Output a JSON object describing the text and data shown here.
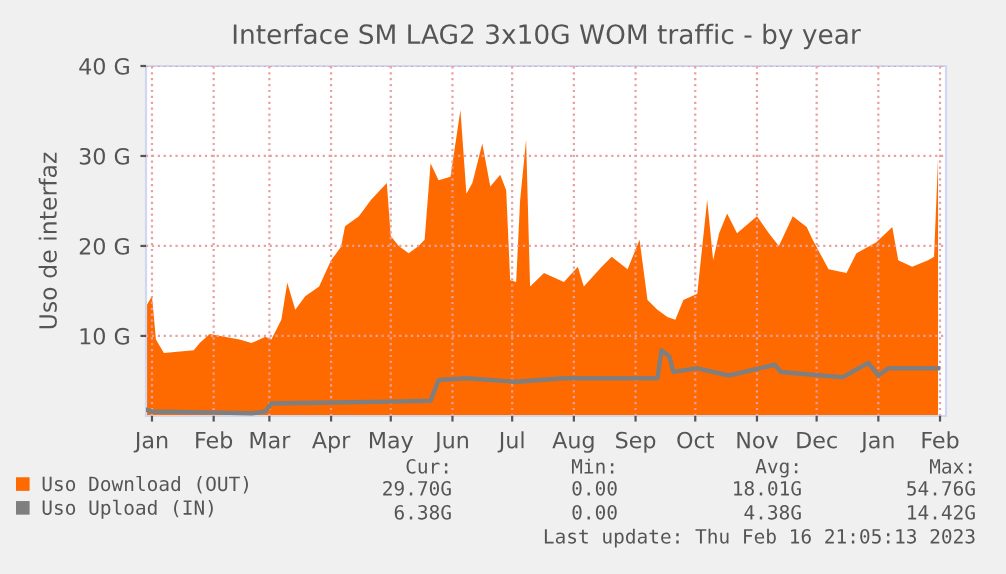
{
  "chart_data": {
    "type": "area",
    "title": "Interface SM LAG2 3x10G WOM traffic - by year",
    "ylabel": "Uso de interfaz",
    "ylim": [
      1.1,
      40
    ],
    "yticks": [
      {
        "value": 10,
        "label": "10 G"
      },
      {
        "value": 20,
        "label": "20 G"
      },
      {
        "value": 30,
        "label": "30 G"
      },
      {
        "value": 40,
        "label": "40 G"
      }
    ],
    "xlim": [
      "2022-01-12",
      "2023-02-18"
    ],
    "xticks": [
      {
        "value": "2022-01-15",
        "label": "Jan"
      },
      {
        "value": "2022-02-15",
        "label": "Feb"
      },
      {
        "value": "2022-03-15",
        "label": "Mar"
      },
      {
        "value": "2022-04-15",
        "label": "Apr"
      },
      {
        "value": "2022-05-15",
        "label": "May"
      },
      {
        "value": "2022-06-15",
        "label": "Jun"
      },
      {
        "value": "2022-07-15",
        "label": "Jul"
      },
      {
        "value": "2022-08-15",
        "label": "Aug"
      },
      {
        "value": "2022-09-15",
        "label": "Sep"
      },
      {
        "value": "2022-10-15",
        "label": "Oct"
      },
      {
        "value": "2022-11-15",
        "label": "Nov"
      },
      {
        "value": "2022-12-15",
        "label": "Dec"
      },
      {
        "value": "2023-01-15",
        "label": "Jan"
      },
      {
        "value": "2023-02-15",
        "label": "Feb"
      }
    ],
    "grid": true,
    "legend": "bottom",
    "series": [
      {
        "name": "Uso Download (OUT)",
        "color": "#ff6a00",
        "x": [
          "2022-01-12",
          "2022-01-15",
          "2022-01-17",
          "2022-01-21",
          "2022-02-05",
          "2022-02-08",
          "2022-02-13",
          "2022-02-28",
          "2022-03-06",
          "2022-03-13",
          "2022-03-16",
          "2022-03-21",
          "2022-03-24",
          "2022-03-28",
          "2022-04-02",
          "2022-04-09",
          "2022-04-15",
          "2022-04-20",
          "2022-04-22",
          "2022-04-29",
          "2022-05-05",
          "2022-05-13",
          "2022-05-15",
          "2022-05-19",
          "2022-05-24",
          "2022-05-29",
          "2022-06-01",
          "2022-06-04",
          "2022-06-08",
          "2022-06-14",
          "2022-06-19",
          "2022-06-22",
          "2022-06-25",
          "2022-06-30",
          "2022-07-04",
          "2022-07-09",
          "2022-07-12",
          "2022-07-14",
          "2022-07-17",
          "2022-07-19",
          "2022-07-22",
          "2022-07-24",
          "2022-07-31",
          "2022-08-10",
          "2022-08-17",
          "2022-08-20",
          "2022-08-29",
          "2022-09-03",
          "2022-09-11",
          "2022-09-17",
          "2022-09-21",
          "2022-09-26",
          "2022-10-01",
          "2022-10-05",
          "2022-10-09",
          "2022-10-16",
          "2022-10-21",
          "2022-10-24",
          "2022-10-27",
          "2022-10-31",
          "2022-11-05",
          "2022-11-15",
          "2022-11-21",
          "2022-11-26",
          "2022-12-03",
          "2022-12-10",
          "2022-12-13",
          "2022-12-21",
          "2022-12-30",
          "2023-01-04",
          "2023-01-14",
          "2023-01-22",
          "2023-01-25",
          "2023-02-01",
          "2023-02-09",
          "2023-02-12",
          "2023-02-14"
        ],
        "values": [
          13.3,
          14.4,
          9.6,
          8.1,
          8.4,
          9.2,
          10.2,
          9.6,
          9.2,
          9.9,
          9.6,
          11.8,
          15.9,
          12.9,
          14.4,
          15.5,
          18.4,
          19.9,
          22.2,
          23.3,
          25.1,
          27,
          21.1,
          20,
          19.2,
          20,
          20.7,
          29.2,
          27.3,
          27.7,
          35.1,
          25.8,
          27,
          31.4,
          26.6,
          27.9,
          26.2,
          16.2,
          16,
          25.1,
          31.8,
          15.5,
          17,
          16,
          17.7,
          15.5,
          17.7,
          18.8,
          17.4,
          20.7,
          14,
          12.9,
          12.1,
          11.8,
          14,
          14.7,
          25.1,
          18.4,
          21.4,
          23.6,
          21.4,
          23.3,
          21.4,
          20,
          23.3,
          22.1,
          20.7,
          17.4,
          17,
          19.2,
          20.4,
          22.1,
          18.4,
          17.7,
          18.4,
          18.8,
          29.7
        ]
      },
      {
        "name": "Uso Upload (IN)",
        "type": "line",
        "color": "#7f7f7f",
        "x": [
          "2022-01-12",
          "2022-01-15",
          "2022-02-13",
          "2022-03-06",
          "2022-03-13",
          "2022-03-16",
          "2022-04-15",
          "2022-05-15",
          "2022-06-04",
          "2022-06-08",
          "2022-06-22",
          "2022-07-17",
          "2022-08-10",
          "2022-09-26",
          "2022-09-28",
          "2022-10-02",
          "2022-10-04",
          "2022-10-16",
          "2022-11-01",
          "2022-11-24",
          "2022-11-27",
          "2022-12-28",
          "2023-01-10",
          "2023-01-15",
          "2023-01-20",
          "2023-02-14"
        ],
        "values": [
          1.8,
          1.6,
          1.5,
          1.4,
          1.6,
          2.5,
          2.6,
          2.7,
          2.8,
          5.1,
          5.3,
          4.9,
          5.3,
          5.3,
          8.4,
          7.7,
          6.0,
          6.4,
          5.6,
          6.8,
          6.0,
          5.4,
          7.0,
          5.6,
          6.4,
          6.4
        ]
      }
    ],
    "annotations": [
      "Cur:",
      "Min:",
      "Avg:",
      "Max:",
      "29.70G",
      "0.00",
      "18.01G",
      "54.76G",
      "6.38G",
      "0.00",
      "4.38G",
      "14.42G",
      "Last update: Thu Feb 16 21:05:13 2023"
    ]
  }
}
